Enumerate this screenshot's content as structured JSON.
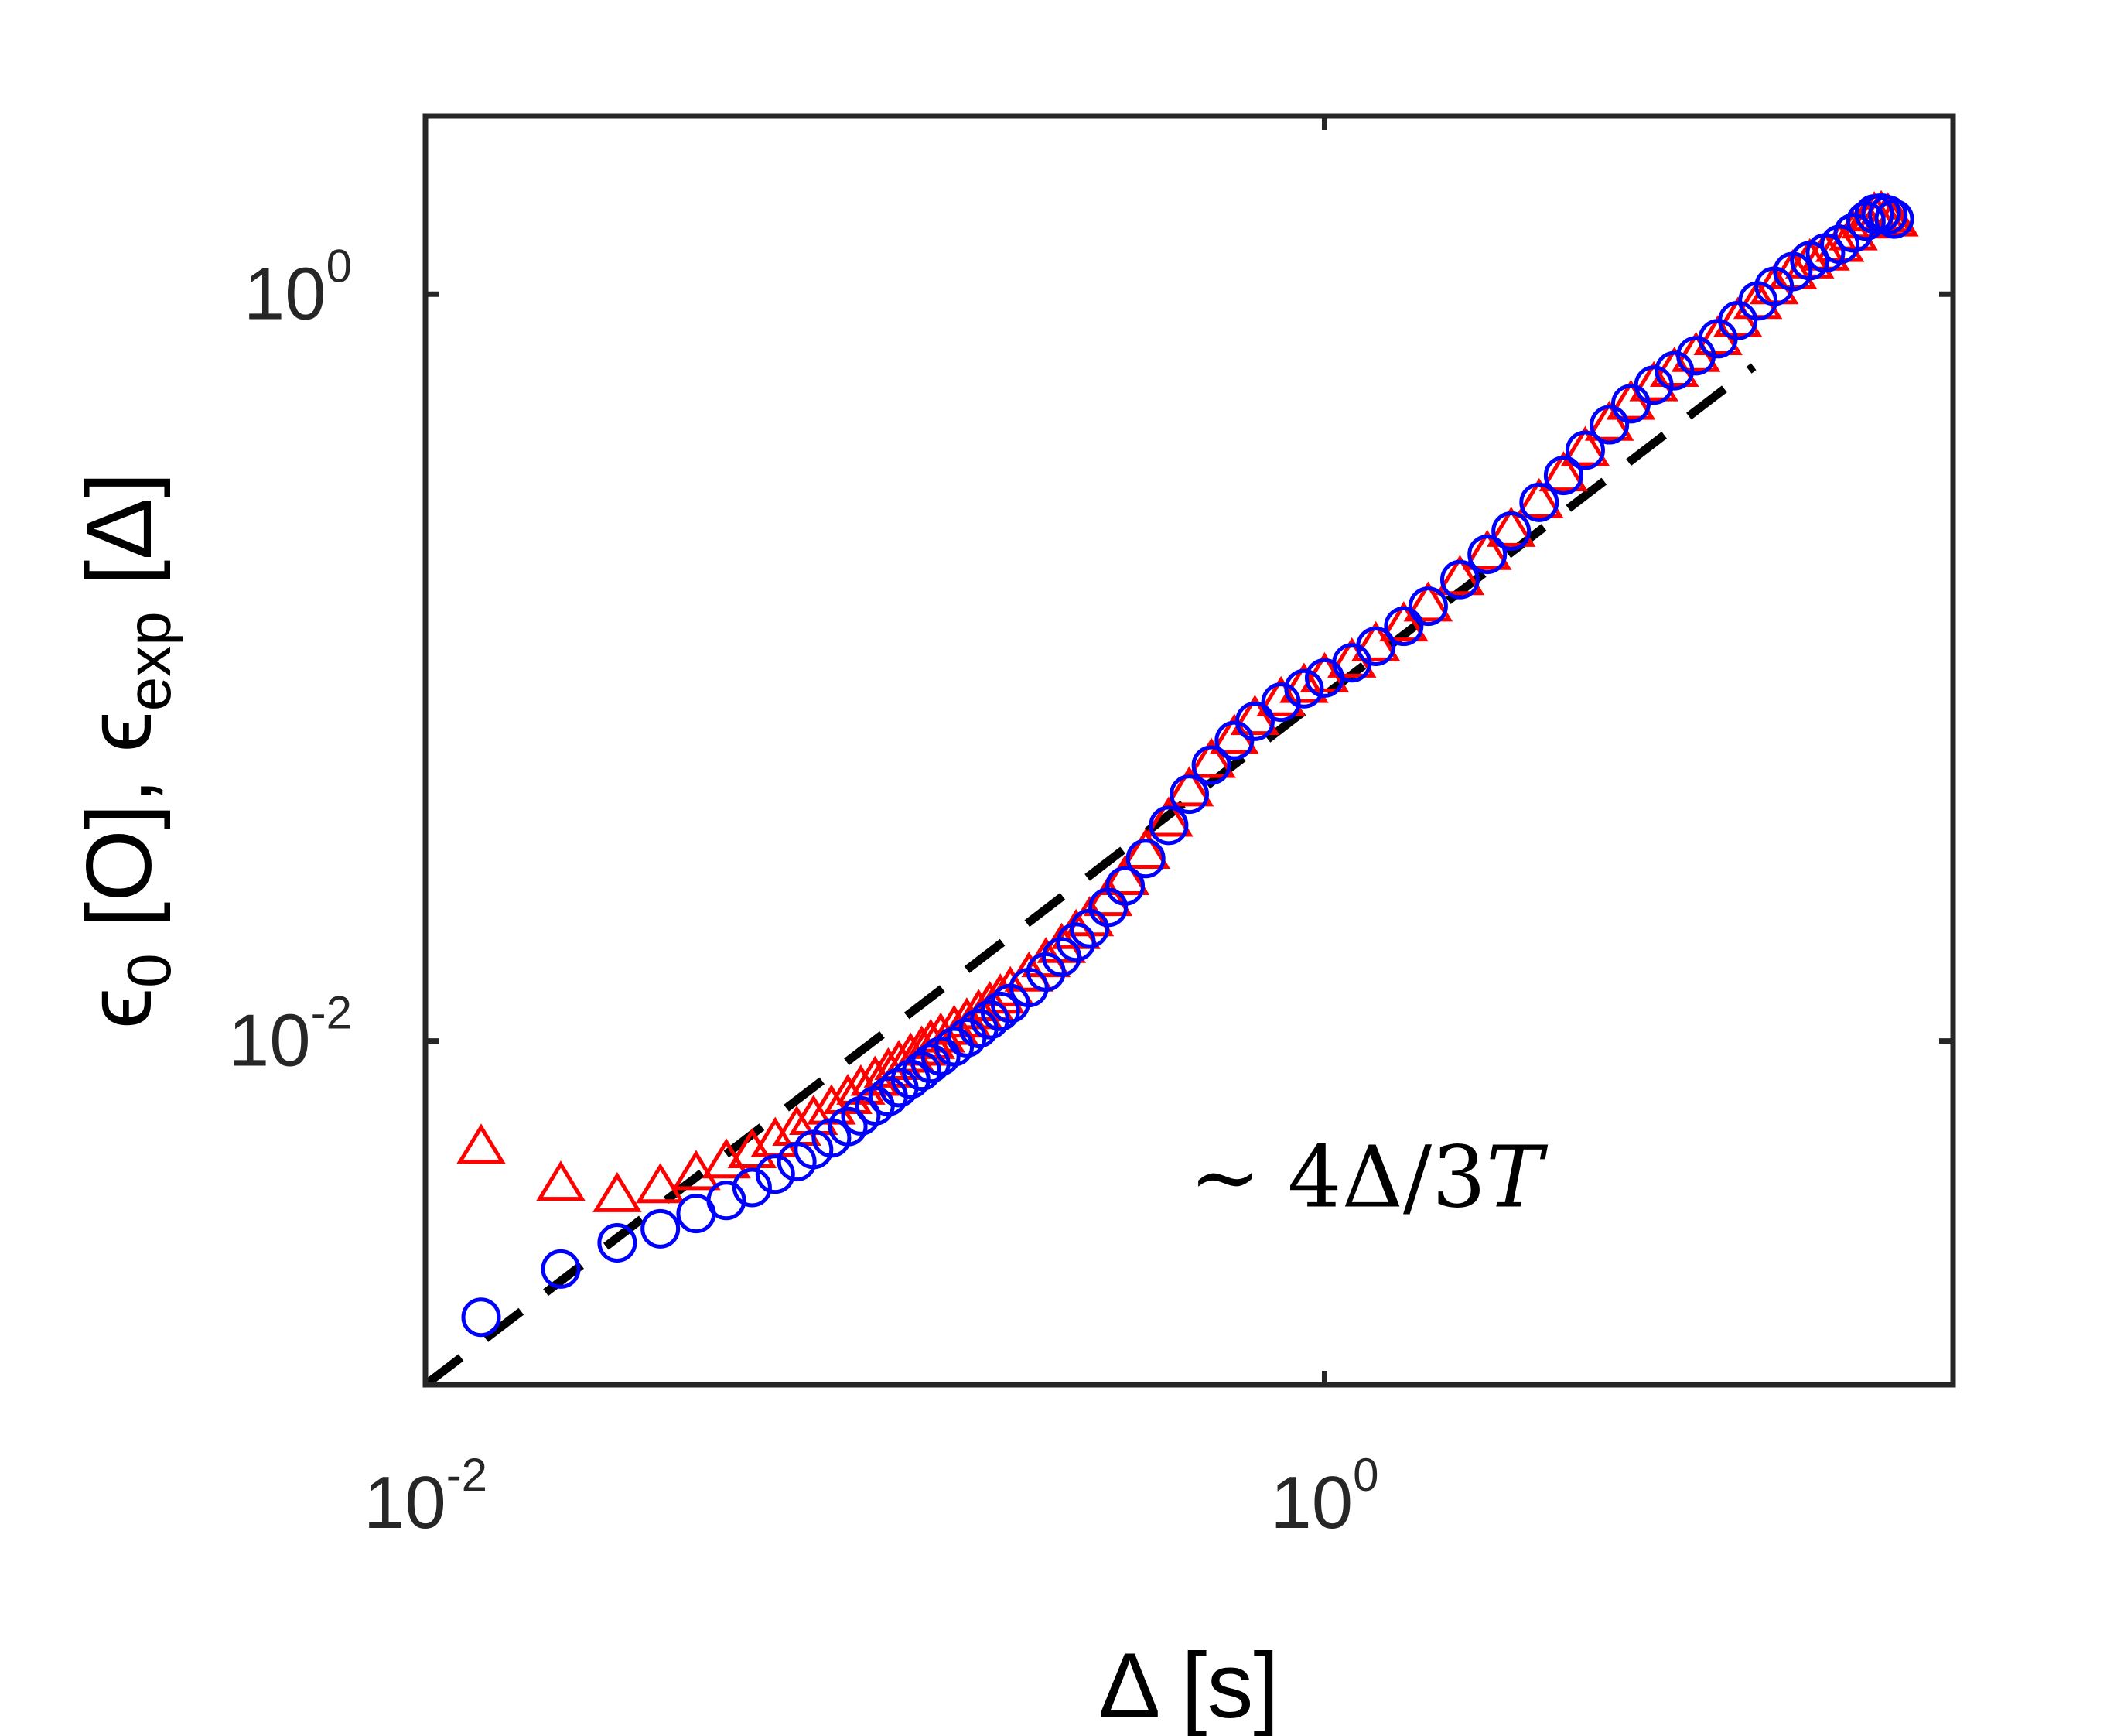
{
  "chart_data": {
    "type": "scatter",
    "x_scale": "log",
    "y_scale": "log",
    "xlim": [
      0.01,
      25
    ],
    "ylim": [
      0.0012,
      3.0
    ],
    "x_ticks": [
      {
        "value": 0.01,
        "base": "10",
        "exp": "-2"
      },
      {
        "value": 1,
        "base": "10",
        "exp": "0"
      }
    ],
    "y_ticks": [
      {
        "value": 0.01,
        "base": "10",
        "exp": "-2"
      },
      {
        "value": 1,
        "base": "10",
        "exp": "0"
      }
    ],
    "xlabel": "Δ [s]",
    "ylabel": {
      "eps": "ϵ",
      "sub1": "0",
      "part1": " [O], ",
      "sub2": "exp",
      "part2": " [Δ]"
    },
    "grid": false,
    "annotation": {
      "prefix": "∼ 4Δ/3",
      "script": "T",
      "x": 0.5,
      "y": 0.0036
    },
    "reference_line": {
      "style": "dashed",
      "color": "#000000",
      "x": [
        0.01,
        9.0
      ],
      "y": [
        0.0012,
        0.64
      ]
    },
    "series": [
      {
        "marker": "triangle",
        "color": "#ff0000",
        "points": [
          [
            0.0133,
            0.00519
          ],
          [
            0.02,
            0.00413
          ],
          [
            0.0267,
            0.00385
          ],
          [
            0.0333,
            0.00407
          ],
          [
            0.04,
            0.00441
          ],
          [
            0.0467,
            0.00474
          ],
          [
            0.0533,
            0.00505
          ],
          [
            0.06,
            0.00541
          ],
          [
            0.067,
            0.0058
          ],
          [
            0.073,
            0.0062
          ],
          [
            0.08,
            0.00661
          ],
          [
            0.087,
            0.00705
          ],
          [
            0.093,
            0.00747
          ],
          [
            0.1,
            0.00789
          ],
          [
            0.107,
            0.0083
          ],
          [
            0.113,
            0.0087
          ],
          [
            0.12,
            0.0091
          ],
          [
            0.127,
            0.0095
          ],
          [
            0.133,
            0.0099
          ],
          [
            0.14,
            0.0103
          ],
          [
            0.15,
            0.0108
          ],
          [
            0.16,
            0.0113
          ],
          [
            0.17,
            0.0119
          ],
          [
            0.18,
            0.0125
          ],
          [
            0.19,
            0.0131
          ],
          [
            0.2,
            0.0137
          ],
          [
            0.22,
            0.015
          ],
          [
            0.24,
            0.0164
          ],
          [
            0.26,
            0.0179
          ],
          [
            0.28,
            0.0195
          ],
          [
            0.3,
            0.0211
          ],
          [
            0.33,
            0.0239
          ],
          [
            0.36,
            0.0272
          ],
          [
            0.4,
            0.032
          ],
          [
            0.45,
            0.039
          ],
          [
            0.5,
            0.047
          ],
          [
            0.56,
            0.056
          ],
          [
            0.63,
            0.065
          ],
          [
            0.7,
            0.073
          ],
          [
            0.8,
            0.082
          ],
          [
            0.9,
            0.089
          ],
          [
            1.0,
            0.095
          ],
          [
            1.15,
            0.104
          ],
          [
            1.3,
            0.115
          ],
          [
            1.5,
            0.13
          ],
          [
            1.7,
            0.147
          ],
          [
            2.0,
            0.173
          ],
          [
            2.3,
            0.202
          ],
          [
            2.6,
            0.233
          ],
          [
            3.0,
            0.278
          ],
          [
            3.4,
            0.328
          ],
          [
            3.8,
            0.383
          ],
          [
            4.3,
            0.448
          ],
          [
            4.8,
            0.51
          ],
          [
            5.4,
            0.572
          ],
          [
            6.0,
            0.625
          ],
          [
            6.7,
            0.685
          ],
          [
            7.5,
            0.76
          ],
          [
            8.3,
            0.85
          ],
          [
            9.2,
            0.95
          ],
          [
            10.0,
            1.04
          ],
          [
            11.0,
            1.14
          ],
          [
            12.0,
            1.22
          ],
          [
            13.0,
            1.28
          ],
          [
            14.0,
            1.35
          ],
          [
            15.0,
            1.45
          ],
          [
            16.0,
            1.56
          ],
          [
            16.7,
            1.63
          ],
          [
            17.3,
            1.64
          ],
          [
            17.9,
            1.62
          ],
          [
            18.5,
            1.58
          ]
        ]
      },
      {
        "marker": "circle",
        "color": "#0000ff",
        "points": [
          [
            0.0133,
            0.00182
          ],
          [
            0.02,
            0.00245
          ],
          [
            0.0267,
            0.00288
          ],
          [
            0.0333,
            0.00314
          ],
          [
            0.04,
            0.00345
          ],
          [
            0.0467,
            0.00374
          ],
          [
            0.0533,
            0.00405
          ],
          [
            0.06,
            0.0044
          ],
          [
            0.067,
            0.00475
          ],
          [
            0.073,
            0.00512
          ],
          [
            0.08,
            0.0055
          ],
          [
            0.087,
            0.0059
          ],
          [
            0.093,
            0.0063
          ],
          [
            0.1,
            0.0067
          ],
          [
            0.107,
            0.0071
          ],
          [
            0.113,
            0.0075
          ],
          [
            0.12,
            0.0079
          ],
          [
            0.127,
            0.0083
          ],
          [
            0.133,
            0.0087
          ],
          [
            0.14,
            0.0091
          ],
          [
            0.15,
            0.00965
          ],
          [
            0.16,
            0.0102
          ],
          [
            0.17,
            0.0108
          ],
          [
            0.18,
            0.0114
          ],
          [
            0.19,
            0.012
          ],
          [
            0.2,
            0.0126
          ],
          [
            0.22,
            0.0139
          ],
          [
            0.24,
            0.0153
          ],
          [
            0.26,
            0.0168
          ],
          [
            0.28,
            0.0184
          ],
          [
            0.3,
            0.02
          ],
          [
            0.33,
            0.0228
          ],
          [
            0.36,
            0.026
          ],
          [
            0.4,
            0.0308
          ],
          [
            0.45,
            0.0378
          ],
          [
            0.5,
            0.0458
          ],
          [
            0.56,
            0.0548
          ],
          [
            0.63,
            0.0638
          ],
          [
            0.7,
            0.0718
          ],
          [
            0.8,
            0.0808
          ],
          [
            0.9,
            0.0878
          ],
          [
            1.0,
            0.0938
          ],
          [
            1.15,
            0.103
          ],
          [
            1.3,
            0.114
          ],
          [
            1.5,
            0.129
          ],
          [
            1.7,
            0.146
          ],
          [
            2.0,
            0.172
          ],
          [
            2.3,
            0.201
          ],
          [
            2.6,
            0.232
          ],
          [
            3.0,
            0.277
          ],
          [
            3.4,
            0.327
          ],
          [
            3.8,
            0.382
          ],
          [
            4.3,
            0.447
          ],
          [
            4.8,
            0.509
          ],
          [
            5.4,
            0.571
          ],
          [
            6.0,
            0.624
          ],
          [
            6.7,
            0.684
          ],
          [
            7.5,
            0.76
          ],
          [
            8.3,
            0.85
          ],
          [
            9.2,
            0.96
          ],
          [
            10.0,
            1.05
          ],
          [
            11.0,
            1.15
          ],
          [
            12.0,
            1.23
          ],
          [
            13.0,
            1.29
          ],
          [
            14.0,
            1.36
          ],
          [
            15.0,
            1.46
          ],
          [
            16.0,
            1.57
          ],
          [
            16.7,
            1.64
          ],
          [
            17.3,
            1.65
          ],
          [
            17.9,
            1.63
          ],
          [
            18.5,
            1.59
          ]
        ]
      }
    ]
  }
}
